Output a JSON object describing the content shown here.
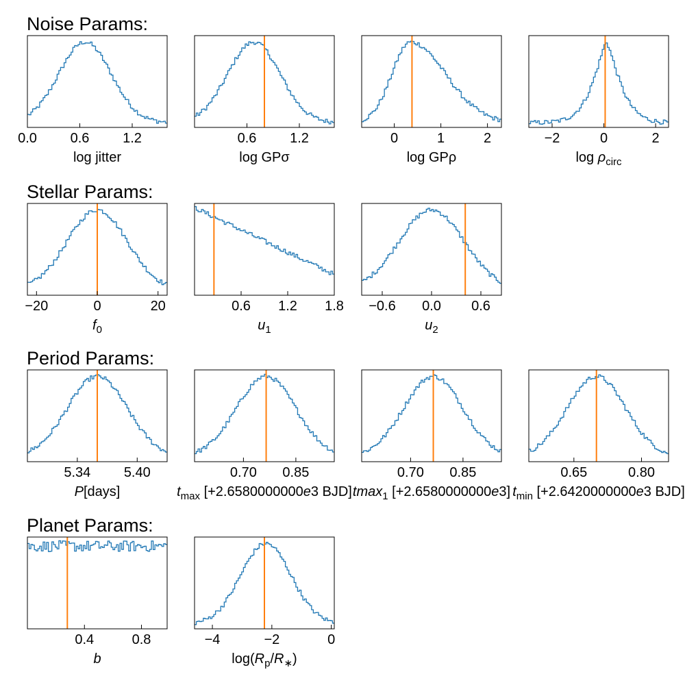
{
  "chart_data": {
    "type": "histogram-grid",
    "colors": {
      "histogram": "#1f77b4",
      "truth_line": "#ff7f0e"
    },
    "sections": [
      {
        "title": "Noise Params:",
        "panels": [
          {
            "xlabel_parts": [
              [
                "log jitter",
                "normal"
              ]
            ],
            "xlim": [
              0.0,
              1.6
            ],
            "ticks": [
              0.0,
              0.6,
              1.2
            ],
            "tick_labels": [
              "0.0",
              "0.6",
              "1.2"
            ],
            "truth": null,
            "shape": {
              "kind": "gauss",
              "mu": 0.66,
              "sigma": 0.3
            }
          },
          {
            "xlabel_parts": [
              [
                "log GPσ",
                "normal"
              ]
            ],
            "xlim": [
              0.0,
              1.6
            ],
            "ticks": [
              0.6,
              1.2
            ],
            "tick_labels": [
              "0.6",
              "1.2"
            ],
            "truth": 0.8,
            "shape": {
              "kind": "gauss",
              "mu": 0.68,
              "sigma": 0.3
            }
          },
          {
            "xlabel_parts": [
              [
                "log GPρ",
                "normal"
              ]
            ],
            "xlim": [
              -0.7,
              2.3
            ],
            "ticks": [
              0,
              1,
              2
            ],
            "tick_labels": [
              "0",
              "1",
              "2"
            ],
            "truth": 0.38,
            "shape": {
              "kind": "skew",
              "mu": 0.35,
              "sl": 0.4,
              "sr": 0.75
            }
          },
          {
            "xlabel_parts": [
              [
                "log ",
                "normal"
              ],
              [
                "ρ",
                "italic"
              ],
              [
                "circ",
                "sub"
              ]
            ],
            "xlim": [
              -2.9,
              2.5
            ],
            "ticks": [
              -2,
              0,
              2
            ],
            "tick_labels": [
              "−2",
              "0",
              "2"
            ],
            "truth": 0.05,
            "shape": {
              "kind": "lapl",
              "mu": 0.1,
              "sigma": 0.7
            }
          }
        ]
      },
      {
        "title": "Stellar Params:",
        "panels": [
          {
            "xlabel_parts": [
              [
                "f",
                "italic"
              ],
              [
                "0",
                "sub"
              ]
            ],
            "xlim": [
              -23,
              23
            ],
            "ticks": [
              -20,
              0,
              20
            ],
            "tick_labels": [
              "−20",
              "0",
              "20"
            ],
            "truth": 0,
            "shape": {
              "kind": "gauss",
              "mu": 0,
              "sigma": 10
            }
          },
          {
            "xlabel_parts": [
              [
                "u",
                "italic"
              ],
              [
                "1",
                "sub"
              ]
            ],
            "xlim": [
              0.0,
              1.8
            ],
            "ticks": [
              0.6,
              1.2,
              1.8
            ],
            "tick_labels": [
              "0.6",
              "1.2",
              "1.8"
            ],
            "truth": 0.25,
            "shape": {
              "kind": "linear",
              "a": 1.0,
              "b": 0.9
            }
          },
          {
            "xlabel_parts": [
              [
                "u",
                "italic"
              ],
              [
                "2",
                "sub"
              ]
            ],
            "xlim": [
              -0.85,
              0.85
            ],
            "ticks": [
              -0.6,
              0.0,
              0.6
            ],
            "tick_labels": [
              "−0.6",
              "0.0",
              "0.6"
            ],
            "truth": 0.41,
            "shape": {
              "kind": "gauss",
              "mu": 0.0,
              "sigma": 0.4
            }
          }
        ]
      },
      {
        "title": "Period Params:",
        "panels": [
          {
            "xlabel_parts": [
              [
                "P",
                "italic"
              ],
              [
                "[days]",
                "normal"
              ]
            ],
            "xlim": [
              5.29,
              5.43
            ],
            "ticks": [
              5.34,
              5.4
            ],
            "tick_labels": [
              "5.34",
              "5.40"
            ],
            "truth": 5.36,
            "shape": {
              "kind": "gauss",
              "mu": 5.36,
              "sigma": 0.03
            }
          },
          {
            "xlabel_parts": [
              [
                "t",
                "italic"
              ],
              [
                "max",
                "sub"
              ],
              [
                "  [+2.6580000000",
                "normal"
              ],
              [
                "e",
                "italic"
              ],
              [
                "3  BJD]",
                "normal"
              ]
            ],
            "xlim": [
              0.56,
              0.96
            ],
            "ticks": [
              0.7,
              0.85
            ],
            "tick_labels": [
              "0.70",
              "0.85"
            ],
            "truth": 0.765,
            "shape": {
              "kind": "gauss",
              "mu": 0.765,
              "sigma": 0.085
            }
          },
          {
            "xlabel_parts": [
              [
                "tmax",
                "italic"
              ],
              [
                "1",
                "sub"
              ],
              [
                " [+2.6580000000",
                "normal"
              ],
              [
                "e",
                "italic"
              ],
              [
                "3]",
                "normal"
              ]
            ],
            "xlim": [
              0.56,
              0.96
            ],
            "ticks": [
              0.7,
              0.85
            ],
            "tick_labels": [
              "0.70",
              "0.85"
            ],
            "truth": 0.765,
            "shape": {
              "kind": "gauss",
              "mu": 0.765,
              "sigma": 0.085
            }
          },
          {
            "xlabel_parts": [
              [
                "t",
                "italic"
              ],
              [
                "min",
                "sub"
              ],
              [
                "  [+2.6420000000",
                "normal"
              ],
              [
                "e",
                "italic"
              ],
              [
                "3  BJD]",
                "normal"
              ]
            ],
            "xlim": [
              0.55,
              0.86
            ],
            "ticks": [
              0.65,
              0.8
            ],
            "tick_labels": [
              "0.65",
              "0.80"
            ],
            "truth": 0.7,
            "shape": {
              "kind": "gauss",
              "mu": 0.7,
              "sigma": 0.065
            }
          }
        ]
      },
      {
        "title": "Planet Params:",
        "panels": [
          {
            "xlabel_parts": [
              [
                "b",
                "italic"
              ]
            ],
            "xlim": [
              0.0,
              0.98
            ],
            "ticks": [
              0.4,
              0.8
            ],
            "tick_labels": [
              "0.4",
              "0.8"
            ],
            "truth": 0.28,
            "shape": {
              "kind": "flat"
            }
          },
          {
            "xlabel_parts": [
              [
                "log(",
                "normal"
              ],
              [
                "R",
                "italic"
              ],
              [
                "p",
                "sub"
              ],
              [
                "/",
                "normal"
              ],
              [
                "R",
                "italic"
              ],
              [
                "∗",
                "sub"
              ],
              [
                ")",
                "normal"
              ]
            ],
            "xlim": [
              -4.6,
              0.1
            ],
            "ticks": [
              -4,
              -2,
              0
            ],
            "tick_labels": [
              "−4",
              "−2",
              "0"
            ],
            "truth": -2.25,
            "shape": {
              "kind": "gauss",
              "mu": -2.2,
              "sigma": 0.85
            }
          }
        ]
      }
    ]
  }
}
